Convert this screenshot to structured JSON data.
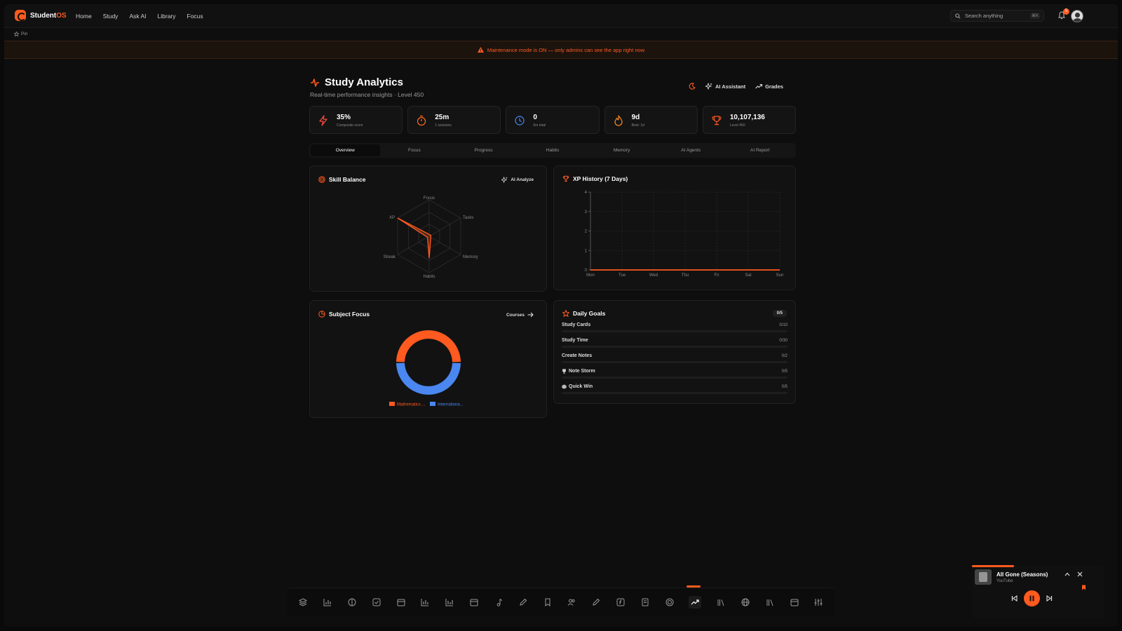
{
  "app": {
    "name_main": "Student",
    "name_accent": "OS",
    "accent": "#ff5a1f"
  },
  "nav": {
    "items": [
      "Home",
      "Study",
      "Ask AI",
      "Library",
      "Focus"
    ]
  },
  "search": {
    "placeholder": "Search anything",
    "shortcut": "⌘K"
  },
  "notifications": {
    "count": "5"
  },
  "pin": {
    "label": "Pin"
  },
  "banner": {
    "text": "Maintenance mode is ON — only admins can see the app right now"
  },
  "header": {
    "title": "Study Analytics",
    "subtitle": "Real-time performance insights · Level 450",
    "actions": {
      "ai_assistant": "AI Assistant",
      "grades": "Grades"
    }
  },
  "stats": [
    {
      "icon": "lightning-icon",
      "value": "35%",
      "label": "Composite score"
    },
    {
      "icon": "timer-icon",
      "value": "25m",
      "label": "1 sessions"
    },
    {
      "icon": "clock-icon",
      "value": "0",
      "label": "0m total"
    },
    {
      "icon": "flame-icon",
      "value": "9d",
      "label": "Best: 1d"
    },
    {
      "icon": "trophy-icon",
      "value": "10,107,136",
      "label": "Level 450"
    }
  ],
  "tabs": [
    "Overview",
    "Focus",
    "Progress",
    "Habits",
    "Memory",
    "AI Agents",
    "AI Report"
  ],
  "skill_balance": {
    "title": "Skill Balance",
    "action": "AI Analyze",
    "axes": [
      "Focus",
      "Tasks",
      "Memory",
      "Habits",
      "Streak",
      "XP"
    ],
    "values": [
      0.05,
      0.05,
      0.05,
      0.6,
      0.05,
      1.0
    ]
  },
  "xp_history": {
    "title": "XP History (7 Days)",
    "chart_data": {
      "type": "line",
      "categories": [
        "Mon",
        "Tue",
        "Wed",
        "Thu",
        "Fri",
        "Sat",
        "Sun"
      ],
      "values": [
        0,
        0,
        0,
        0,
        0,
        0,
        0
      ],
      "yticks": [
        0,
        1,
        2,
        3,
        4
      ],
      "ylim": [
        0,
        4
      ],
      "color": "#ff5a1f"
    }
  },
  "subject_focus": {
    "title": "Subject Focus",
    "action": "Courses",
    "chart_data": {
      "type": "pie",
      "labels": [
        "Mathematics ...",
        "Internationa..."
      ],
      "values": [
        50,
        50
      ],
      "colors": [
        "#ff5a1f",
        "#4a87f0"
      ]
    }
  },
  "daily_goals": {
    "title": "Daily Goals",
    "progress": "0/5",
    "items": [
      {
        "name": "Study Cards",
        "value": "0/10",
        "icon": ""
      },
      {
        "name": "Study Time",
        "value": "0/30",
        "icon": ""
      },
      {
        "name": "Create Notes",
        "value": "0/2",
        "icon": ""
      },
      {
        "name": "Note Storm",
        "value": "0/5",
        "icon": "trophy-icon"
      },
      {
        "name": "Quick Win",
        "value": "0/5",
        "icon": "cube-icon"
      }
    ]
  },
  "player": {
    "title": "All Gone (Seasons)",
    "source": "YouTube"
  }
}
